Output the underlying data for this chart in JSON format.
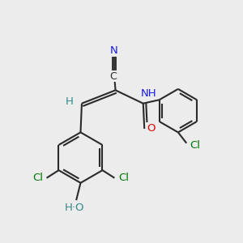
{
  "bg_color": "#ececec",
  "bond_color": "#2a2a2a",
  "bond_lw": 1.5,
  "colors": {
    "N": "#1a1aee",
    "O": "#dd0000",
    "Cl": "#007700",
    "H": "#338888",
    "C": "#2a2a2a",
    "bg": "#ececec"
  },
  "fs": 9.5,
  "xlim": [
    0,
    10
  ],
  "ylim": [
    0,
    10
  ]
}
